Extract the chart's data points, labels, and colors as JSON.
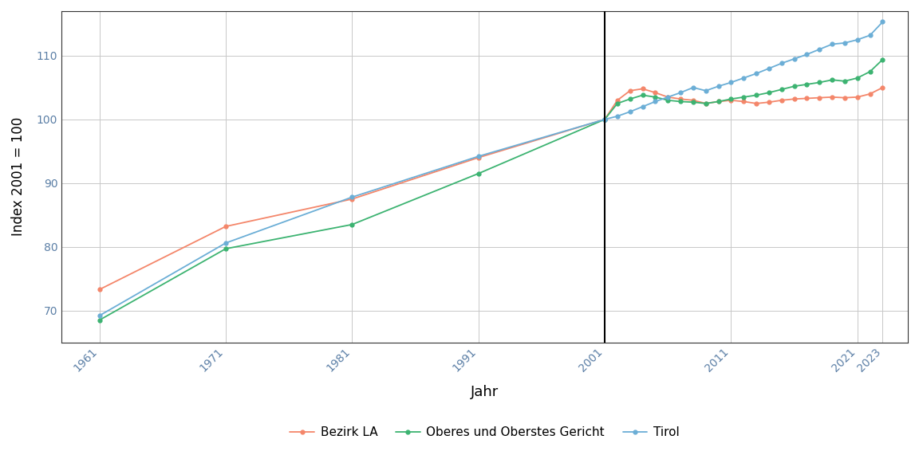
{
  "title": "",
  "xlabel": "Jahr",
  "ylabel": "Index 2001 = 100",
  "vline_x": 2001,
  "xlim": [
    1958,
    2025
  ],
  "ylim": [
    65,
    117
  ],
  "xticks": [
    1961,
    1971,
    1981,
    1991,
    2001,
    2011,
    2021,
    2023
  ],
  "yticks": [
    70,
    80,
    90,
    100,
    110
  ],
  "background_color": "#ffffff",
  "grid_color": "#c8c8c8",
  "legend_labels": [
    "Bezirk LA",
    "Oberes und Oberstes Gericht",
    "Tirol"
  ],
  "line_colors": [
    "#F4866A",
    "#3CB371",
    "#6BAED6"
  ],
  "markersize": 3.5,
  "linewidth": 1.3,
  "tick_color": "#5B7FA6",
  "pre_2001_years": [
    1961,
    1971,
    1981,
    1991,
    2001
  ],
  "bezirk_la_pre": [
    73.3,
    83.2,
    87.5,
    94.0,
    100.0
  ],
  "oberes_pre": [
    68.5,
    79.7,
    83.5,
    91.5,
    100.0
  ],
  "tirol_pre": [
    69.2,
    80.6,
    87.8,
    94.2,
    100.0
  ],
  "post_2001_years": [
    2001,
    2002,
    2003,
    2004,
    2005,
    2006,
    2007,
    2008,
    2009,
    2010,
    2011,
    2012,
    2013,
    2014,
    2015,
    2016,
    2017,
    2018,
    2019,
    2020,
    2021,
    2022,
    2023
  ],
  "bezirk_la_post": [
    100.0,
    103.0,
    104.5,
    104.8,
    104.2,
    103.5,
    103.2,
    103.0,
    102.5,
    102.8,
    103.0,
    102.8,
    102.5,
    102.7,
    103.0,
    103.2,
    103.3,
    103.4,
    103.5,
    103.4,
    103.5,
    104.0,
    105.0
  ],
  "oberes_post": [
    100.0,
    102.5,
    103.2,
    103.8,
    103.5,
    103.0,
    102.8,
    102.7,
    102.5,
    102.8,
    103.2,
    103.5,
    103.8,
    104.2,
    104.7,
    105.2,
    105.5,
    105.8,
    106.2,
    106.0,
    106.5,
    107.5,
    109.4
  ],
  "tirol_post": [
    100.0,
    100.5,
    101.2,
    102.0,
    102.8,
    103.5,
    104.2,
    105.0,
    104.5,
    105.2,
    105.8,
    106.5,
    107.2,
    108.0,
    108.8,
    109.5,
    110.2,
    111.0,
    111.8,
    112.0,
    112.5,
    113.2,
    115.3
  ]
}
